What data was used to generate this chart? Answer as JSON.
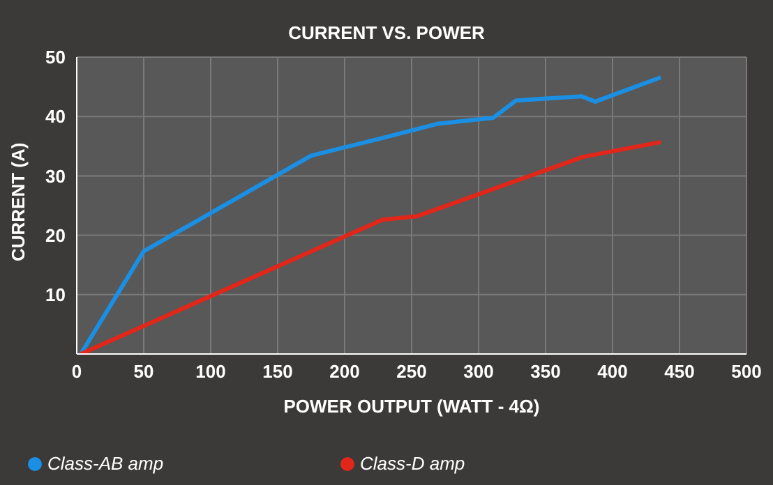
{
  "chart_data": {
    "type": "line",
    "title": "CURRENT VS. POWER",
    "xlabel": "POWER OUTPUT (WATT - 4Ω)",
    "ylabel": "CURRENT (A)",
    "xlim": [
      0,
      500
    ],
    "xticks": [
      0,
      50,
      100,
      150,
      200,
      250,
      300,
      350,
      400,
      450,
      500
    ],
    "ylim": [
      0,
      50
    ],
    "yticks": [
      10,
      20,
      30,
      40,
      50
    ],
    "grid": true,
    "legend": "bottom left",
    "series": [
      {
        "name": "Class-AB amp",
        "color": "#1a8fe3",
        "x": [
          3,
          50,
          175,
          225,
          270,
          311,
          328,
          377,
          387,
          436
        ],
        "values": [
          0,
          17.3,
          33.4,
          36.2,
          38.8,
          39.8,
          42.7,
          43.4,
          42.5,
          46.6
        ]
      },
      {
        "name": "Class-D amp",
        "color": "#e3261a",
        "x": [
          3,
          228,
          254,
          378,
          436
        ],
        "values": [
          0,
          22.6,
          23.2,
          33.2,
          35.7
        ]
      }
    ]
  }
}
